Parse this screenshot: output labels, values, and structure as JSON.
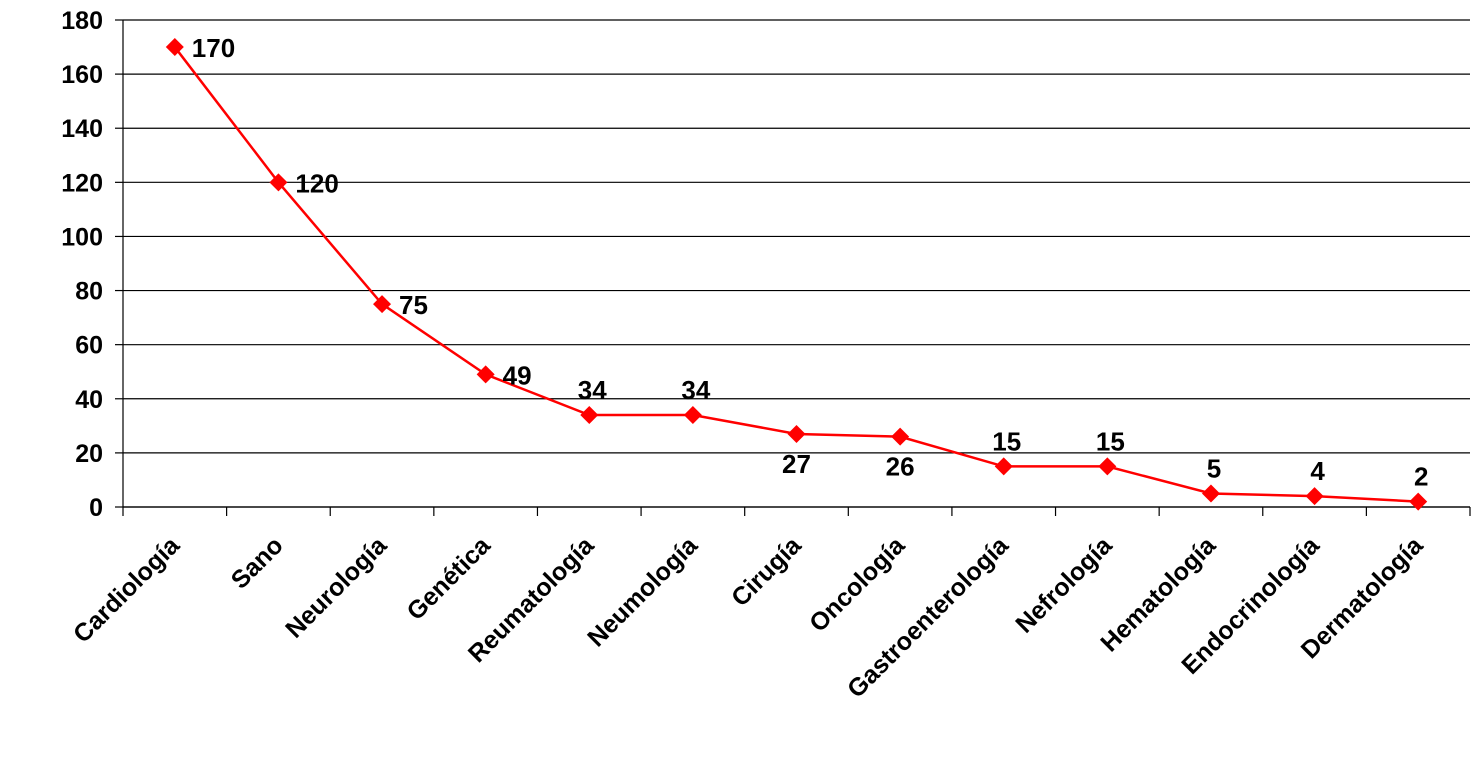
{
  "chart_data": {
    "type": "line",
    "title": "",
    "xlabel": "",
    "ylabel": "",
    "categories": [
      "Cardiología",
      "Sano",
      "Neurología",
      "Genética",
      "Reumatología",
      "Neumología",
      "Cirugía",
      "Oncología",
      "Gastroenterología",
      "Nefrología",
      "Hematología",
      "Endocrinología",
      "Dermatología"
    ],
    "values": [
      170,
      120,
      75,
      49,
      34,
      34,
      27,
      26,
      15,
      15,
      5,
      4,
      2
    ],
    "ylim": [
      0,
      180
    ],
    "yticks": [
      0,
      20,
      40,
      60,
      80,
      100,
      120,
      140,
      160,
      180
    ],
    "data_labels": [
      "170",
      "120",
      "75",
      "49",
      "34",
      "34",
      "27",
      "26",
      "15",
      "15",
      "5",
      "4",
      "2"
    ],
    "label_positions": [
      "right",
      "right",
      "right",
      "right",
      "above",
      "above",
      "below",
      "below",
      "above",
      "above",
      "above",
      "above",
      "above"
    ],
    "marker": "diamond",
    "grid": true,
    "legend": "none",
    "colors": {
      "series": "#ff0000",
      "grid": "#000000",
      "axis": "#000000"
    }
  }
}
